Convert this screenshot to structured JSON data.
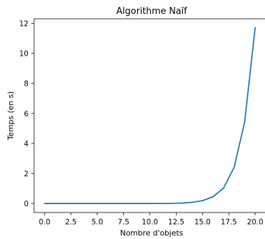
{
  "chart_data": {
    "type": "line",
    "title": "Algorithme Naïf",
    "xlabel": "Nombre d'objets",
    "ylabel": "Temps (en s)",
    "xlim": [
      -1.0,
      21.0
    ],
    "ylim": [
      -0.6,
      12.3
    ],
    "xticks": [
      "0.0",
      "2.5",
      "5.0",
      "7.5",
      "10.0",
      "12.5",
      "15.0",
      "17.5",
      "20.0"
    ],
    "yticks": [
      "0",
      "2",
      "4",
      "6",
      "8",
      "10",
      "12"
    ],
    "grid": false,
    "series": [
      {
        "color": "#1f77b4",
        "x": [
          0,
          1,
          2,
          3,
          4,
          5,
          6,
          7,
          8,
          9,
          10,
          11,
          12,
          13,
          14,
          15,
          16,
          17,
          18,
          19,
          20
        ],
        "y": [
          0,
          0,
          0,
          0,
          0,
          0,
          0,
          0,
          0,
          0,
          0,
          0.01,
          0.01,
          0.03,
          0.08,
          0.19,
          0.45,
          1.03,
          2.41,
          5.42,
          11.72
        ]
      }
    ]
  }
}
